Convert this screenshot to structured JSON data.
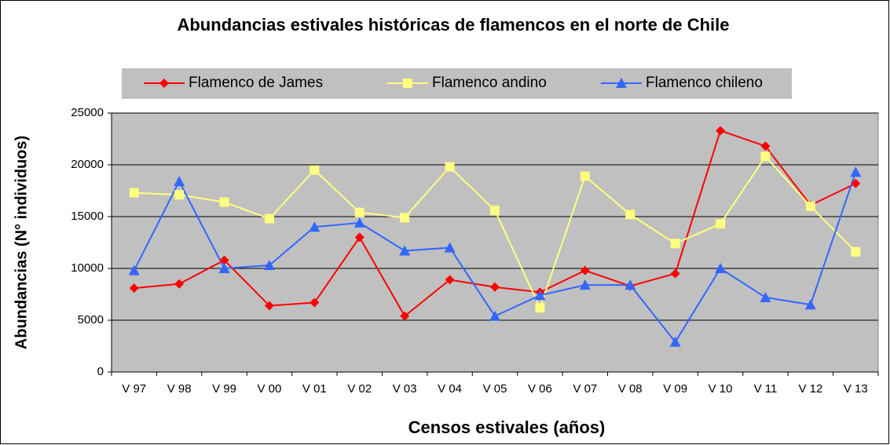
{
  "chart_data": {
    "type": "line",
    "title": "Abundancias estivales históricas de flamencos en el norte de Chile",
    "xlabel": "Censos estivales (años)",
    "ylabel": "Abundancias (N° individuos)",
    "categories": [
      "V 97",
      "V 98",
      "V 99",
      "V 00",
      "V 01",
      "V 02",
      "V 03",
      "V 04",
      "V 05",
      "V 06",
      "V 07",
      "V 08",
      "V 09",
      "V 10",
      "V 11",
      "V 12",
      "V 13"
    ],
    "series": [
      {
        "name": "Flamenco de James",
        "color": "#ff0000",
        "marker": "diamond",
        "values": [
          8100,
          8500,
          10800,
          6400,
          6700,
          13000,
          5400,
          8900,
          8200,
          7700,
          9800,
          8300,
          9500,
          23300,
          21800,
          16100,
          18200
        ]
      },
      {
        "name": "Flamenco andino",
        "color": "#ffff80",
        "marker": "square",
        "values": [
          17300,
          17100,
          16400,
          14800,
          19500,
          15400,
          14900,
          19800,
          15600,
          6200,
          18900,
          15200,
          12400,
          14300,
          20800,
          16000,
          11600
        ]
      },
      {
        "name": "Flamenco chileno",
        "color": "#3366ff",
        "marker": "triangle",
        "values": [
          9800,
          18400,
          10000,
          10300,
          14000,
          14400,
          11700,
          12000,
          5400,
          7400,
          8400,
          8400,
          2900,
          10000,
          7200,
          6500,
          19300
        ]
      }
    ],
    "ylim": [
      0,
      25000
    ],
    "yticks": [
      0,
      5000,
      10000,
      15000,
      20000,
      25000
    ],
    "grid": true
  }
}
